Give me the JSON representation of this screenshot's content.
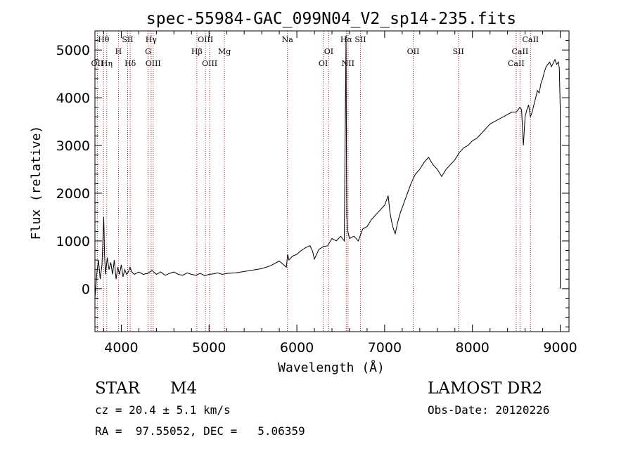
{
  "chart_data": {
    "type": "line",
    "title": "spec-55984-GAC_099N04_V2_sp14-235.fits",
    "xlabel": "Wavelength (Å)",
    "ylabel": "Flux (relative)",
    "xlim": [
      3700,
      9100
    ],
    "ylim": [
      -900,
      5400
    ],
    "xticks": [
      4000,
      5000,
      6000,
      7000,
      8000,
      9000
    ],
    "yticks": [
      0,
      1000,
      2000,
      3000,
      4000,
      5000
    ],
    "grid": false,
    "line_marker_color": "#b22222",
    "lines": [
      {
        "name": "Hθ",
        "wavelength": 3798,
        "row": 0
      },
      {
        "name": "OII",
        "wavelength": 3727,
        "row": 2
      },
      {
        "name": "Hη",
        "wavelength": 3835,
        "row": 2
      },
      {
        "name": "H",
        "wavelength": 3968,
        "row": 1
      },
      {
        "name": "SII",
        "wavelength": 4072,
        "row": 0
      },
      {
        "name": "Hδ",
        "wavelength": 4102,
        "row": 2
      },
      {
        "name": "Hγ",
        "wavelength": 4340,
        "row": 0
      },
      {
        "name": "G",
        "wavelength": 4305,
        "row": 1
      },
      {
        "name": "OIII",
        "wavelength": 4363,
        "row": 2
      },
      {
        "name": "OIII",
        "wavelength": 4959,
        "row": 0
      },
      {
        "name": "Hβ",
        "wavelength": 4861,
        "row": 1
      },
      {
        "name": "OIII",
        "wavelength": 5007,
        "row": 2
      },
      {
        "name": "Mg",
        "wavelength": 5175,
        "row": 1
      },
      {
        "name": "Na",
        "wavelength": 5893,
        "row": 0
      },
      {
        "name": "OI",
        "wavelength": 6363,
        "row": 1
      },
      {
        "name": "OI",
        "wavelength": 6300,
        "row": 2
      },
      {
        "name": "Hα",
        "wavelength": 6563,
        "row": 0
      },
      {
        "name": "SII",
        "wavelength": 6724,
        "row": 0
      },
      {
        "name": "NII",
        "wavelength": 6583,
        "row": 2
      },
      {
        "name": "OII",
        "wavelength": 7325,
        "row": 1
      },
      {
        "name": "SII",
        "wavelength": 7840,
        "row": 1
      },
      {
        "name": "CaII",
        "wavelength": 8662,
        "row": 0
      },
      {
        "name": "CaII",
        "wavelength": 8542,
        "row": 1
      },
      {
        "name": "CaII",
        "wavelength": 8498,
        "row": 2
      }
    ],
    "series": [
      {
        "x": [
          3700,
          3720,
          3740,
          3760,
          3780,
          3800,
          3810,
          3820,
          3840,
          3860,
          3880,
          3900,
          3920,
          3940,
          3960,
          3980,
          4000,
          4020,
          4040,
          4060,
          4080,
          4100,
          4120,
          4150,
          4200,
          4250,
          4300,
          4350,
          4400,
          4450,
          4500,
          4550,
          4600,
          4650,
          4700,
          4750,
          4800,
          4850,
          4900,
          4950,
          5000,
          5050,
          5100,
          5150,
          5200,
          5300,
          5400,
          5500,
          5600,
          5700,
          5800,
          5880,
          5895,
          5910,
          5950,
          6000,
          6050,
          6100,
          6150,
          6180,
          6200,
          6250,
          6300,
          6350,
          6400,
          6450,
          6500,
          6540,
          6560,
          6563,
          6566,
          6570,
          6580,
          6600,
          6650,
          6700,
          6750,
          6800,
          6850,
          6900,
          6950,
          7000,
          7040,
          7060,
          7080,
          7100,
          7120,
          7150,
          7180,
          7200,
          7250,
          7300,
          7350,
          7400,
          7450,
          7500,
          7550,
          7600,
          7650,
          7700,
          7750,
          7800,
          7850,
          7900,
          7950,
          8000,
          8050,
          8100,
          8150,
          8200,
          8250,
          8300,
          8350,
          8400,
          8450,
          8500,
          8540,
          8560,
          8580,
          8600,
          8620,
          8640,
          8660,
          8680,
          8700,
          8720,
          8740,
          8760,
          8780,
          8800,
          8820,
          8840,
          8860,
          8880,
          8900,
          8940,
          8960,
          8980,
          8990,
          9000,
          9000
        ],
        "y": [
          -200,
          300,
          600,
          200,
          500,
          1500,
          700,
          300,
          650,
          400,
          550,
          300,
          600,
          200,
          450,
          300,
          500,
          250,
          400,
          300,
          350,
          450,
          350,
          300,
          350,
          300,
          320,
          380,
          300,
          350,
          280,
          320,
          350,
          300,
          280,
          330,
          300,
          280,
          320,
          270,
          300,
          310,
          330,
          300,
          320,
          330,
          360,
          390,
          420,
          480,
          580,
          450,
          720,
          600,
          680,
          720,
          800,
          860,
          900,
          780,
          620,
          820,
          880,
          900,
          1050,
          1000,
          1100,
          1000,
          5300,
          4000,
          2500,
          1500,
          1200,
          1050,
          1100,
          1000,
          1250,
          1300,
          1450,
          1550,
          1650,
          1750,
          1950,
          1600,
          1400,
          1250,
          1150,
          1400,
          1600,
          1700,
          1950,
          2200,
          2400,
          2500,
          2650,
          2750,
          2600,
          2500,
          2350,
          2500,
          2600,
          2700,
          2850,
          2950,
          3000,
          3100,
          3150,
          3250,
          3350,
          3450,
          3500,
          3550,
          3600,
          3650,
          3700,
          3700,
          3800,
          3750,
          3000,
          3600,
          3750,
          3850,
          3600,
          3700,
          3850,
          4000,
          4150,
          4100,
          4300,
          4400,
          4550,
          4650,
          4700,
          4750,
          4650,
          4800,
          4700,
          4750,
          4600,
          3800,
          0
        ]
      }
    ]
  },
  "info": {
    "object_class": "STAR",
    "subclass": "M4",
    "survey": "LAMOST DR2",
    "redshift": "cz = 20.4 ± 5.1 km/s",
    "obs_date": "Obs-Date: 20120226",
    "coords": "RA =  97.55052, DEC =   5.06359"
  }
}
